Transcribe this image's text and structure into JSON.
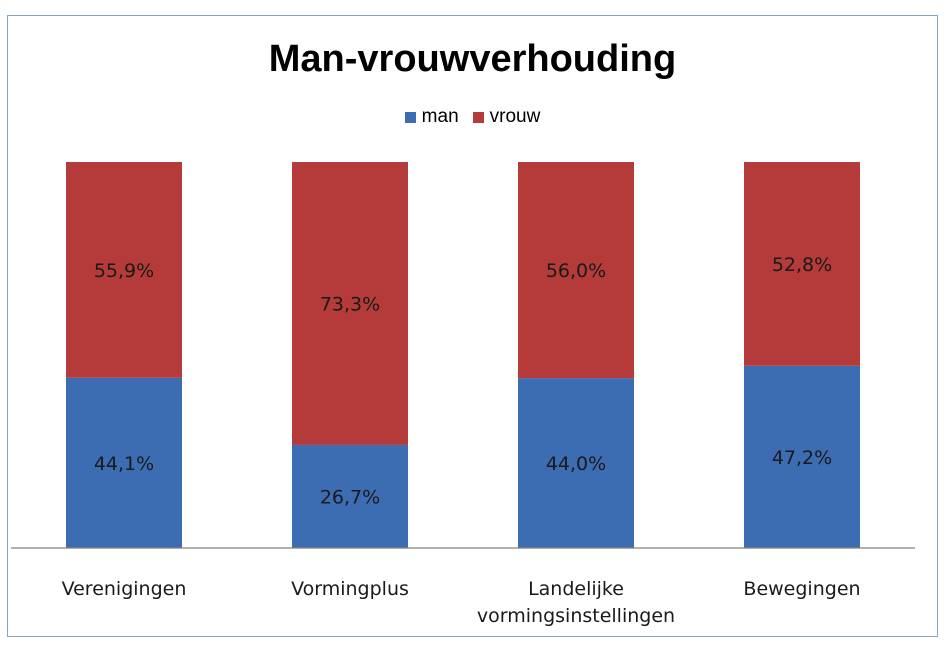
{
  "chart_data": {
    "type": "bar",
    "stacked": true,
    "title": "Man-vrouwverhouding",
    "categories": [
      "Verenigingen",
      "Vormingplus",
      "Landelijke vormingsinstellingen",
      "Bewegingen"
    ],
    "category_lines": [
      [
        "Verenigingen"
      ],
      [
        "Vormingplus"
      ],
      [
        "Landelijke",
        "vormingsinstellingen"
      ],
      [
        "Bewegingen"
      ]
    ],
    "series": [
      {
        "name": "man",
        "color": "#3c6db2",
        "values": [
          44.1,
          26.7,
          44.0,
          47.2
        ],
        "labels": [
          "44,1%",
          "26,7%",
          "44,0%",
          "47,2%"
        ]
      },
      {
        "name": "vrouw",
        "color": "#b43b39",
        "values": [
          55.9,
          73.3,
          56.0,
          52.8
        ],
        "labels": [
          "55,9%",
          "73,3%",
          "56,0%",
          "52,8%"
        ]
      }
    ],
    "ylim": [
      0,
      100
    ],
    "legend_position": "top",
    "grid": false
  }
}
